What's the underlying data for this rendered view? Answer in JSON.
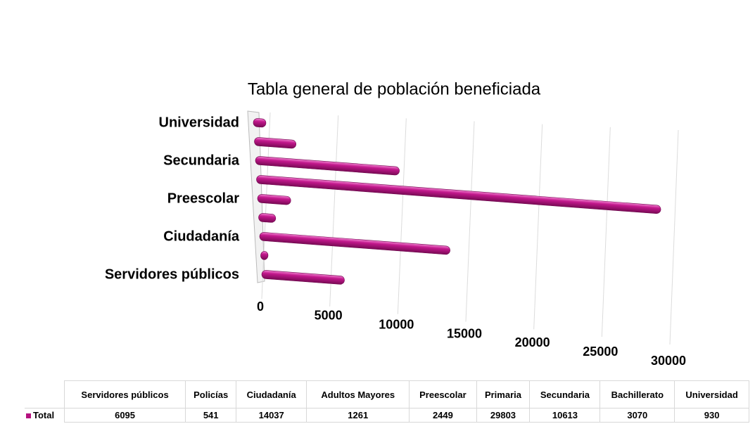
{
  "chart_data": {
    "type": "bar3d",
    "title": "Tabla general de población beneficiada",
    "categories": [
      "Servidores públicos",
      "Policías",
      "Ciudadanía",
      "Adultos Mayores",
      "Preescolar",
      "Primaria",
      "Secundaria",
      "Bachillerato",
      "Universidad"
    ],
    "series": [
      {
        "name": "Total",
        "color": "#b5127f",
        "values": [
          6095,
          541,
          14037,
          1261,
          2449,
          29803,
          10613,
          3070,
          930
        ]
      }
    ],
    "xlim": [
      0,
      30000
    ],
    "xticks": [
      0,
      5000,
      10000,
      15000,
      20000,
      25000,
      30000
    ],
    "grid": true
  }
}
